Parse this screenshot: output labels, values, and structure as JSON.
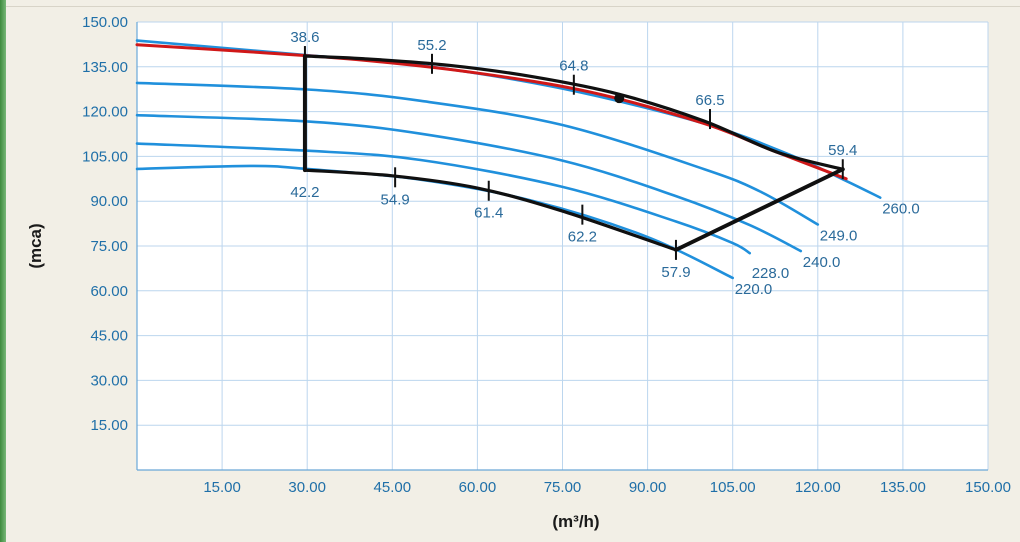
{
  "chart_data": {
    "type": "line",
    "title": "",
    "xlabel": "(m³/h)",
    "ylabel": "(mca)",
    "xlim": [
      0,
      150
    ],
    "ylim": [
      0,
      150
    ],
    "x_ticks": [
      "15.00",
      "30.00",
      "45.00",
      "60.00",
      "75.00",
      "90.00",
      "105.00",
      "120.00",
      "135.00",
      "150.00"
    ],
    "y_ticks": [
      "15.00",
      "30.00",
      "45.00",
      "60.00",
      "75.00",
      "90.00",
      "105.00",
      "120.00",
      "135.00",
      "150.00"
    ],
    "grid": true,
    "series": [
      {
        "name": "260.0",
        "color": "#2090dc",
        "points": [
          [
            0,
            143.8
          ],
          [
            30,
            138.9
          ],
          [
            50,
            135.5
          ],
          [
            75,
            127.7
          ],
          [
            100,
            116
          ],
          [
            115,
            105.6
          ],
          [
            125,
            96.8
          ],
          [
            131,
            91.2
          ]
        ]
      },
      {
        "name": "249.0",
        "color": "#2090dc",
        "points": [
          [
            0,
            129.6
          ],
          [
            30,
            127.4
          ],
          [
            50,
            123.6
          ],
          [
            75,
            115.5
          ],
          [
            100,
            100.7
          ],
          [
            110,
            93.1
          ],
          [
            120,
            82.2
          ]
        ]
      },
      {
        "name": "240.0",
        "color": "#2090dc",
        "points": [
          [
            0,
            118.8
          ],
          [
            30,
            116.7
          ],
          [
            50,
            112.6
          ],
          [
            75,
            103.6
          ],
          [
            95,
            91.7
          ],
          [
            108,
            82
          ],
          [
            117,
            73.3
          ]
        ]
      },
      {
        "name": "228.0",
        "color": "#2090dc",
        "points": [
          [
            0,
            109.3
          ],
          [
            30,
            106.9
          ],
          [
            50,
            103.8
          ],
          [
            75,
            94.8
          ],
          [
            95,
            83.2
          ],
          [
            105,
            76
          ],
          [
            108,
            72.6
          ]
        ]
      },
      {
        "name": "220.0",
        "color": "#2090dc",
        "points": [
          [
            0,
            100.8
          ],
          [
            20,
            101.8
          ],
          [
            30,
            100.8
          ],
          [
            50,
            97.2
          ],
          [
            70,
            90
          ],
          [
            90,
            78
          ],
          [
            105,
            64.3
          ]
        ]
      },
      {
        "name": "",
        "color": "#d01818",
        "points": [
          [
            0,
            142.4
          ],
          [
            20,
            140
          ],
          [
            40,
            137.2
          ],
          [
            60,
            132.9
          ],
          [
            80,
            126.5
          ],
          [
            100,
            116
          ],
          [
            112,
            107
          ],
          [
            125,
            97.5
          ]
        ]
      },
      {
        "name": "",
        "color": "#101010",
        "points": [
          [
            29.6,
            138.6
          ],
          [
            40,
            137.7
          ],
          [
            55,
            135.5
          ],
          [
            70,
            131.6
          ],
          [
            85,
            125.8
          ],
          [
            100,
            116.8
          ],
          [
            113,
            106.3
          ],
          [
            124.4,
            100.7
          ]
        ]
      },
      {
        "name": "",
        "color": "#101010",
        "points": [
          [
            29.6,
            100.4
          ],
          [
            45,
            98.5
          ],
          [
            60,
            94.4
          ],
          [
            75,
            86.7
          ],
          [
            95,
            73.7
          ]
        ]
      },
      {
        "name": "",
        "color": "#101010",
        "points": [
          [
            29.6,
            138.6
          ],
          [
            29.6,
            100.4
          ]
        ]
      },
      {
        "name": "",
        "color": "#101010",
        "points": [
          [
            95,
            73.7
          ],
          [
            124.4,
            100.7
          ]
        ]
      }
    ],
    "annotations": [
      {
        "text": "38.6",
        "x": 29.6,
        "y": 138.6,
        "pos": "above"
      },
      {
        "text": "55.2",
        "x": 52,
        "y": 136,
        "pos": "above"
      },
      {
        "text": "64.8",
        "x": 77,
        "y": 129,
        "pos": "above"
      },
      {
        "text": "66.5",
        "x": 101,
        "y": 117.5,
        "pos": "above"
      },
      {
        "text": "59.4",
        "x": 124.4,
        "y": 100.7,
        "pos": "above"
      },
      {
        "text": "42.2",
        "x": 29.6,
        "y": 100.4,
        "pos": "below"
      },
      {
        "text": "54.9",
        "x": 45.5,
        "y": 98,
        "pos": "below"
      },
      {
        "text": "61.4",
        "x": 62,
        "y": 93.5,
        "pos": "below"
      },
      {
        "text": "62.2",
        "x": 78.5,
        "y": 85.5,
        "pos": "below"
      },
      {
        "text": "57.9",
        "x": 95,
        "y": 73.7,
        "pos": "below"
      },
      {
        "text": "260.0",
        "x": 131,
        "y": 91.2,
        "pos": "right"
      },
      {
        "text": "249.0",
        "x": 120,
        "y": 82.2,
        "pos": "right"
      },
      {
        "text": "240.0",
        "x": 117,
        "y": 73.3,
        "pos": "right"
      },
      {
        "text": "228.0",
        "x": 108,
        "y": 72.6,
        "pos": "right-low"
      },
      {
        "text": "220.0",
        "x": 105,
        "y": 64.3,
        "pos": "right"
      }
    ],
    "ticks": [
      [
        29.6,
        138.6
      ],
      [
        52,
        136
      ],
      [
        77,
        129
      ],
      [
        101,
        117.5
      ],
      [
        124.4,
        100.7
      ],
      [
        45.5,
        98
      ],
      [
        62,
        93.5
      ],
      [
        78.5,
        85.5
      ],
      [
        95,
        73.7
      ]
    ],
    "marker": {
      "x": 85,
      "y": 124.5
    }
  }
}
